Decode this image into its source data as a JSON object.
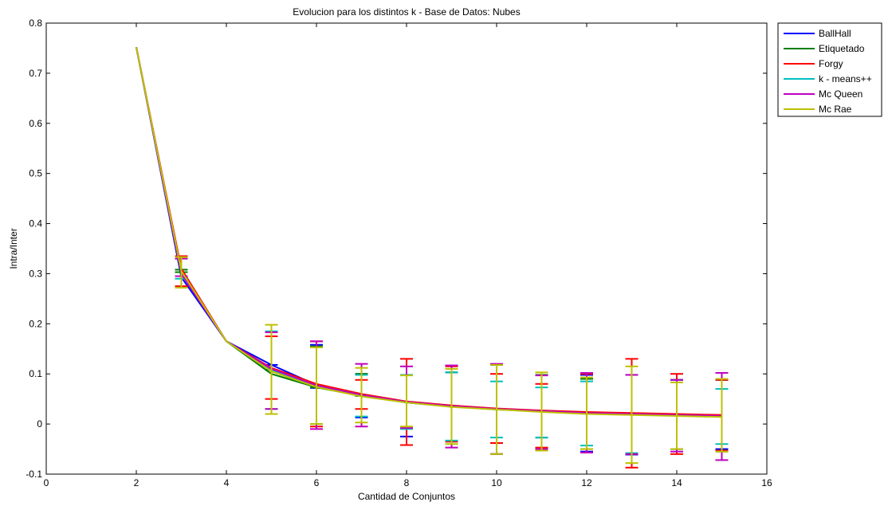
{
  "chart_data": {
    "type": "line",
    "title": "Evolucion para los distintos k  - Base de Datos: Nubes",
    "xlabel": "Cantidad de Conjuntos",
    "ylabel": "Intra/Inter",
    "xlim": [
      0,
      16
    ],
    "ylim": [
      -0.1,
      0.8
    ],
    "xticks": [
      0,
      2,
      4,
      6,
      8,
      10,
      12,
      14,
      16
    ],
    "yticks": [
      -0.1,
      0,
      0.1,
      0.2,
      0.3,
      0.4,
      0.5,
      0.6,
      0.7,
      0.8
    ],
    "xtick_labels": [
      "0",
      "2",
      "4",
      "6",
      "8",
      "10",
      "12",
      "14",
      "16"
    ],
    "ytick_labels": [
      "-0.1",
      "0",
      "0.1",
      "0.2",
      "0.3",
      "0.4",
      "0.5",
      "0.6",
      "0.7",
      "0.8"
    ],
    "grid": false,
    "legend_position": "outside-top-right",
    "x": [
      2,
      3,
      4,
      5,
      6,
      7,
      8,
      9,
      10,
      11,
      12,
      13,
      14,
      15
    ],
    "series": [
      {
        "name": "BallHall",
        "color": "#0000ff",
        "values": [
          0.752,
          0.293,
          0.165,
          0.118,
          0.078,
          0.058,
          0.043,
          0.035,
          0.03,
          0.025,
          0.022,
          0.02,
          0.018,
          0.017
        ],
        "err_low": [
          0.752,
          0.293,
          0.165,
          0.108,
          0.072,
          0.013,
          -0.025,
          -0.035,
          -0.06,
          -0.027,
          -0.055,
          -0.061,
          -0.05,
          -0.05
        ],
        "err_high": [
          0.752,
          0.293,
          0.165,
          0.118,
          0.158,
          0.1,
          0.098,
          0.103,
          0.118,
          0.098,
          0.098,
          0.098,
          0.088,
          0.088
        ]
      },
      {
        "name": "Etiquetado",
        "color": "#008000",
        "values": [
          0.752,
          0.303,
          0.165,
          0.1,
          0.073,
          0.056,
          0.043,
          0.035,
          0.029,
          0.025,
          0.021,
          0.019,
          0.017,
          0.015
        ],
        "err_low": [
          0.752,
          0.303,
          0.165,
          0.1,
          0.073,
          0.056,
          -0.008,
          -0.035,
          -0.06,
          -0.027,
          -0.05,
          -0.06,
          -0.05,
          -0.055
        ],
        "err_high": [
          0.752,
          0.308,
          0.165,
          0.1,
          0.155,
          0.1,
          0.098,
          0.103,
          0.118,
          0.098,
          0.09,
          0.098,
          0.088,
          0.088
        ]
      },
      {
        "name": "Forgy",
        "color": "#ff0000",
        "values": [
          0.752,
          0.31,
          0.165,
          0.112,
          0.08,
          0.06,
          0.045,
          0.037,
          0.031,
          0.027,
          0.024,
          0.022,
          0.02,
          0.018
        ],
        "err_low": [
          0.752,
          0.275,
          0.165,
          0.05,
          -0.005,
          0.03,
          -0.042,
          -0.035,
          -0.038,
          -0.047,
          -0.057,
          -0.087,
          -0.06,
          -0.053
        ],
        "err_high": [
          0.752,
          0.335,
          0.165,
          0.175,
          0.165,
          0.088,
          0.13,
          0.115,
          0.1,
          0.08,
          0.1,
          0.13,
          0.1,
          0.088
        ]
      },
      {
        "name": "k - means++",
        "color": "#00bfbf",
        "values": [
          0.752,
          0.3,
          0.165,
          0.108,
          0.076,
          0.057,
          0.043,
          0.035,
          0.029,
          0.025,
          0.021,
          0.019,
          0.017,
          0.015
        ],
        "err_low": [
          0.752,
          0.29,
          0.165,
          0.03,
          0.0,
          0.015,
          -0.01,
          -0.033,
          -0.027,
          -0.027,
          -0.043,
          -0.058,
          -0.05,
          -0.04
        ],
        "err_high": [
          0.752,
          0.33,
          0.165,
          0.185,
          0.153,
          0.098,
          0.098,
          0.103,
          0.085,
          0.073,
          0.085,
          0.098,
          0.088,
          0.07
        ]
      },
      {
        "name": "Mc Queen",
        "color": "#bf00bf",
        "values": [
          0.752,
          0.3,
          0.165,
          0.11,
          0.077,
          0.058,
          0.044,
          0.036,
          0.03,
          0.026,
          0.022,
          0.02,
          0.018,
          0.016
        ],
        "err_low": [
          0.752,
          0.295,
          0.165,
          0.03,
          -0.01,
          -0.005,
          -0.008,
          -0.047,
          -0.06,
          -0.05,
          -0.057,
          -0.06,
          -0.055,
          -0.072
        ],
        "err_high": [
          0.752,
          0.33,
          0.165,
          0.183,
          0.165,
          0.12,
          0.115,
          0.117,
          0.12,
          0.097,
          0.102,
          0.098,
          0.088,
          0.102
        ]
      },
      {
        "name": "Mc Rae",
        "color": "#bfbf00",
        "values": [
          0.752,
          0.305,
          0.165,
          0.105,
          0.074,
          0.055,
          0.043,
          0.034,
          0.029,
          0.024,
          0.02,
          0.018,
          0.016,
          0.014
        ],
        "err_low": [
          0.752,
          0.272,
          0.165,
          0.02,
          0.0,
          0.003,
          -0.005,
          -0.04,
          -0.06,
          -0.053,
          -0.05,
          -0.078,
          -0.05,
          -0.055
        ],
        "err_high": [
          0.752,
          0.333,
          0.165,
          0.198,
          0.153,
          0.112,
          0.097,
          0.11,
          0.118,
          0.103,
          0.093,
          0.115,
          0.083,
          0.09
        ]
      }
    ]
  }
}
